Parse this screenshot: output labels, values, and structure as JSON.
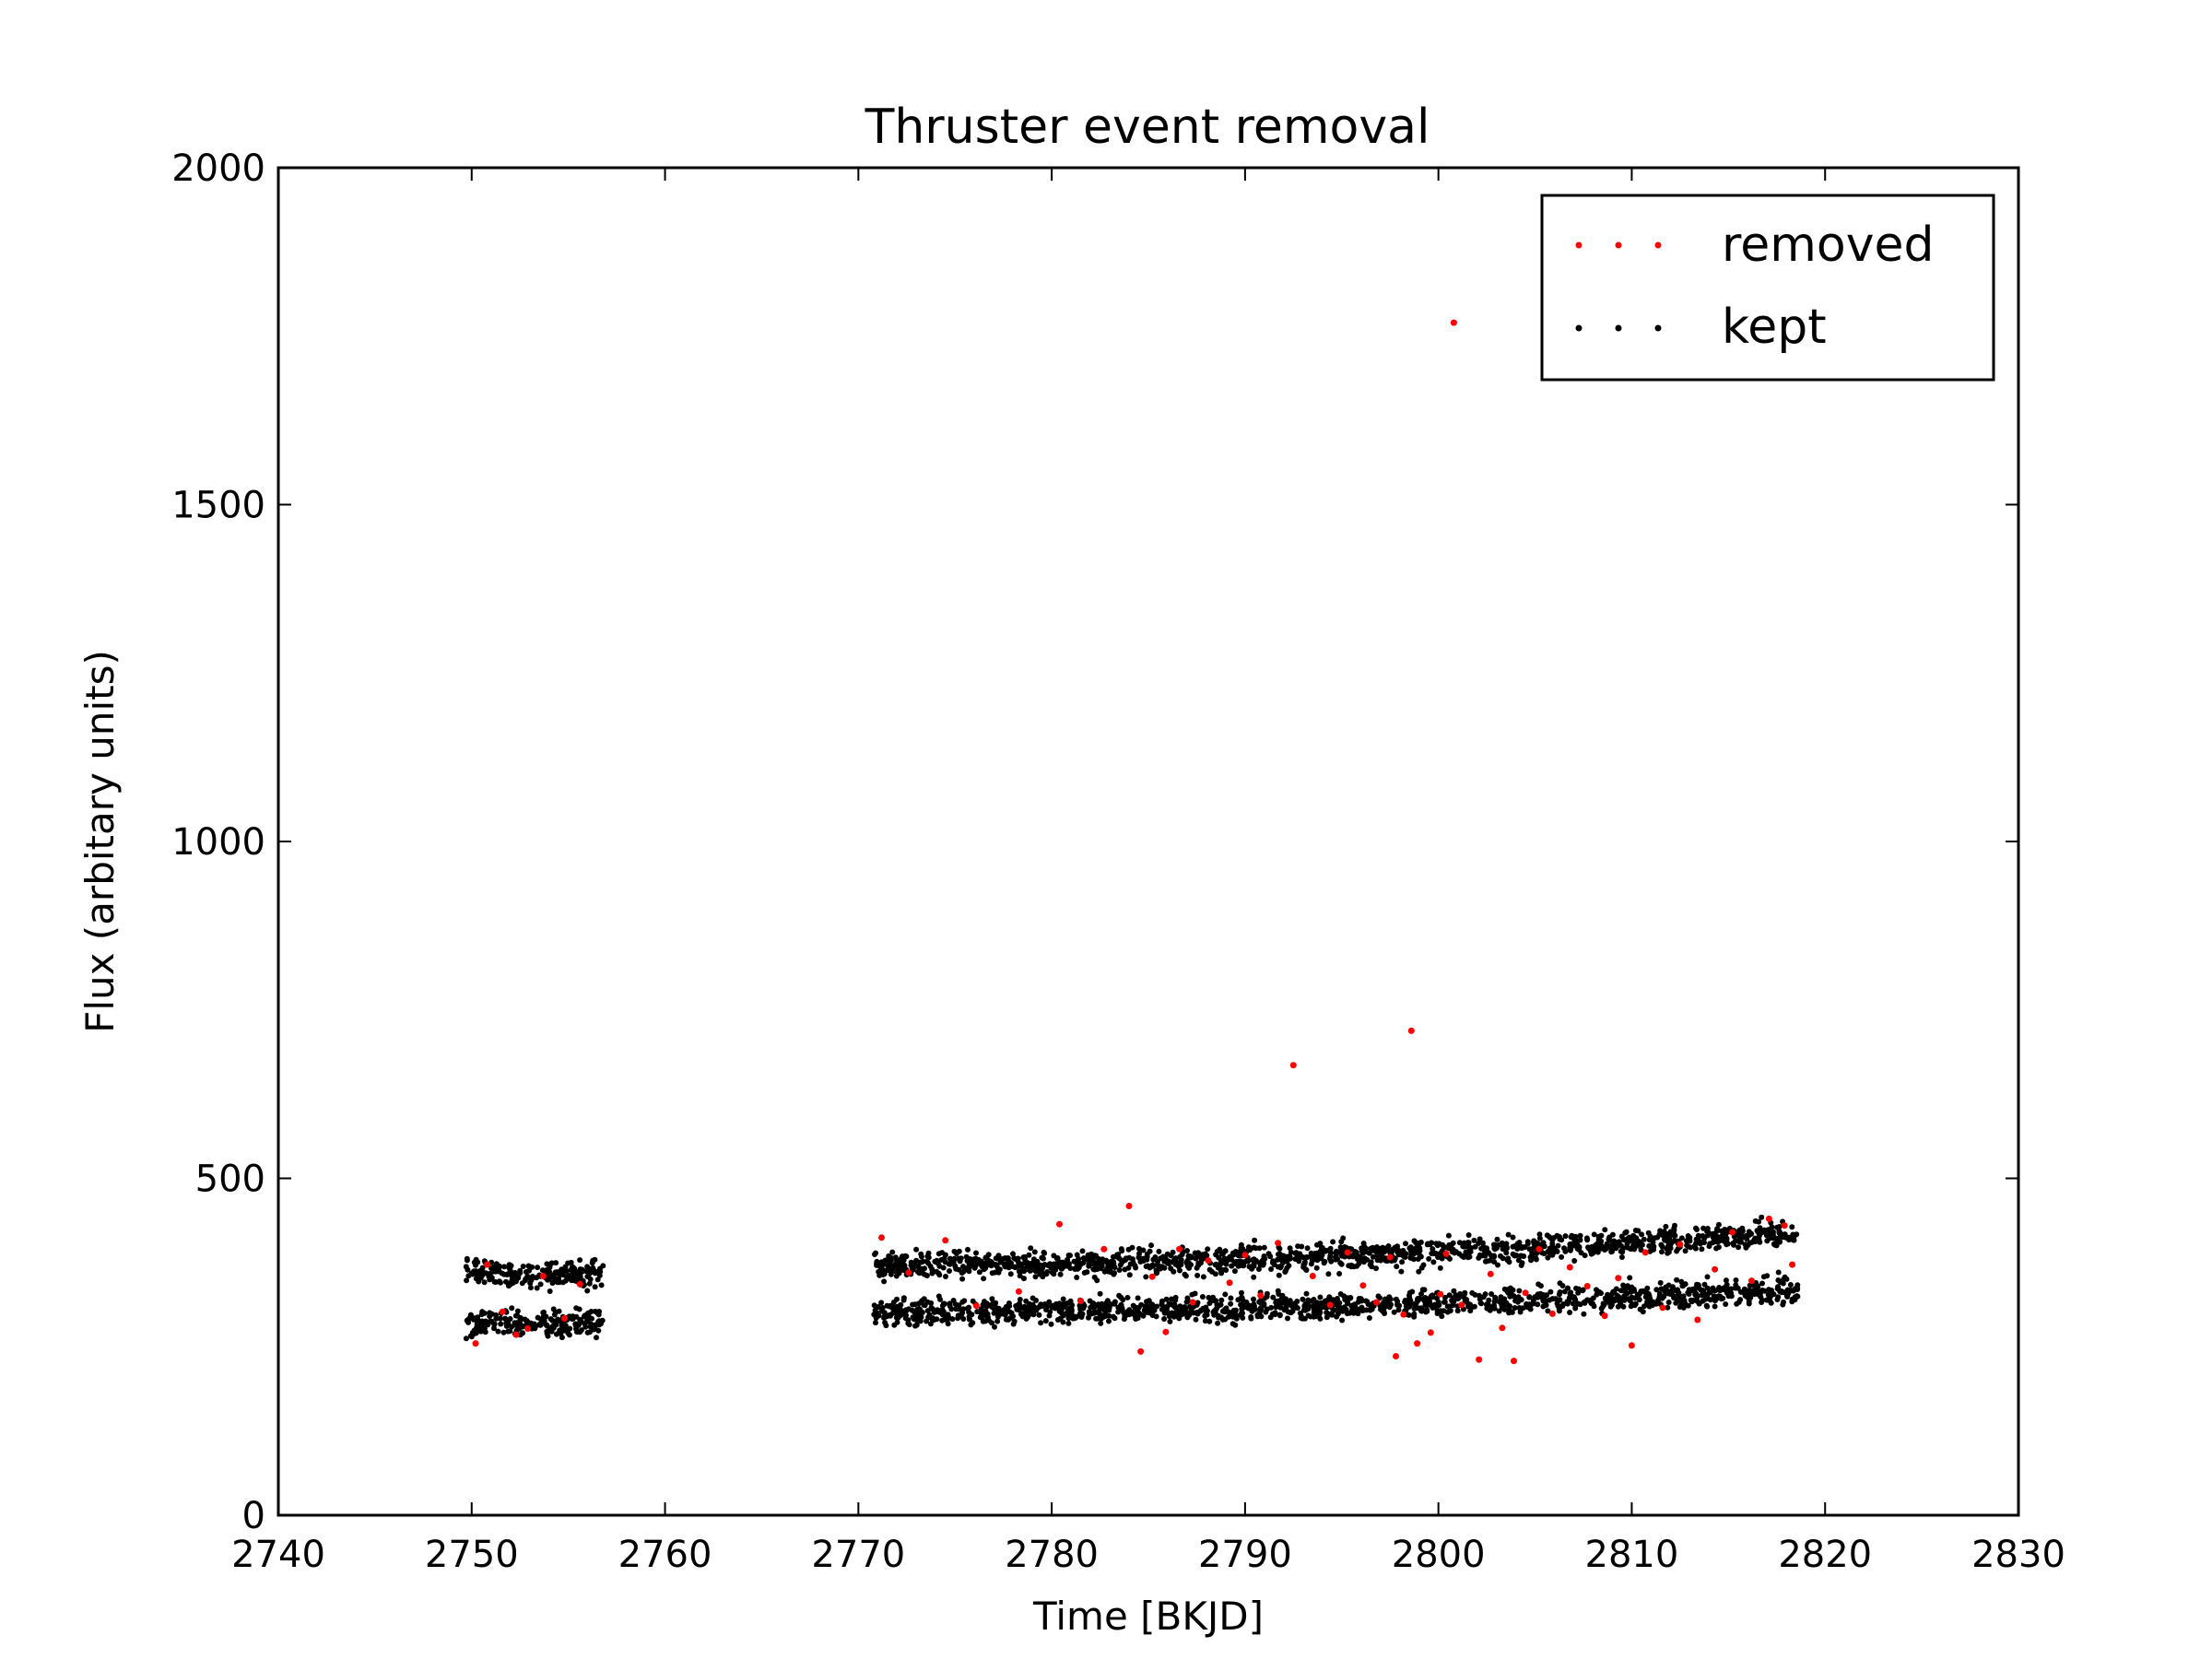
{
  "chart_data": {
    "type": "scatter",
    "title": "Thruster event removal",
    "xlabel": "Time [BKJD]",
    "ylabel": "Flux (arbitary units)",
    "xlim": [
      2740,
      2830
    ],
    "ylim": [
      0,
      2000
    ],
    "xticks": [
      2740,
      2750,
      2760,
      2770,
      2780,
      2790,
      2800,
      2810,
      2820,
      2830
    ],
    "yticks": [
      0,
      500,
      1000,
      1500,
      2000
    ],
    "grid": false,
    "legend_position": "top-right",
    "series": [
      {
        "name": "removed",
        "color": "#ff0000",
        "points": [
          [
            2750.2,
            255
          ],
          [
            2750.8,
            372
          ],
          [
            2751.6,
            302
          ],
          [
            2752.3,
            268
          ],
          [
            2752.9,
            277
          ],
          [
            2753.7,
            355
          ],
          [
            2754.8,
            292
          ],
          [
            2755.6,
            343
          ],
          [
            2771.2,
            412
          ],
          [
            2772.6,
            360
          ],
          [
            2774.5,
            408
          ],
          [
            2776.1,
            311
          ],
          [
            2778.3,
            332
          ],
          [
            2780.4,
            432
          ],
          [
            2781.5,
            318
          ],
          [
            2782.7,
            395
          ],
          [
            2784.0,
            459
          ],
          [
            2784.6,
            243
          ],
          [
            2785.2,
            354
          ],
          [
            2785.9,
            272
          ],
          [
            2786.6,
            395
          ],
          [
            2787.3,
            316
          ],
          [
            2788.1,
            378
          ],
          [
            2789.2,
            345
          ],
          [
            2790.0,
            386
          ],
          [
            2790.8,
            326
          ],
          [
            2791.7,
            404
          ],
          [
            2792.5,
            668
          ],
          [
            2793.5,
            355
          ],
          [
            2794.4,
            312
          ],
          [
            2795.3,
            390
          ],
          [
            2796.1,
            341
          ],
          [
            2796.8,
            316
          ],
          [
            2797.5,
            383
          ],
          [
            2797.8,
            236
          ],
          [
            2798.2,
            298
          ],
          [
            2798.6,
            719
          ],
          [
            2798.9,
            255
          ],
          [
            2799.6,
            271
          ],
          [
            2800.1,
            328
          ],
          [
            2800.4,
            388
          ],
          [
            2800.8,
            1770
          ],
          [
            2801.2,
            312
          ],
          [
            2802.1,
            231
          ],
          [
            2802.7,
            358
          ],
          [
            2803.3,
            278
          ],
          [
            2803.9,
            229
          ],
          [
            2804.5,
            330
          ],
          [
            2805.2,
            395
          ],
          [
            2805.9,
            299
          ],
          [
            2806.8,
            368
          ],
          [
            2807.7,
            340
          ],
          [
            2808.6,
            296
          ],
          [
            2809.3,
            352
          ],
          [
            2810.0,
            252
          ],
          [
            2810.7,
            390
          ],
          [
            2811.6,
            308
          ],
          [
            2812.5,
            402
          ],
          [
            2813.4,
            290
          ],
          [
            2814.3,
            365
          ],
          [
            2815.2,
            420
          ],
          [
            2816.2,
            348
          ],
          [
            2817.1,
            440
          ],
          [
            2817.9,
            430
          ],
          [
            2818.3,
            372
          ]
        ]
      },
      {
        "name": "kept",
        "color": "#000000",
        "segments": [
          {
            "x_start": 2749.7,
            "x_end": 2756.8,
            "upper": [
              358,
              358
            ],
            "lower": [
              285,
              285
            ],
            "spread": 20,
            "count": 420
          },
          {
            "x_start": 2770.8,
            "x_end": 2818.6,
            "upper": [
              372,
              420
            ],
            "lower": [
              302,
              335
            ],
            "spread": 20,
            "count": 2700
          }
        ]
      }
    ]
  }
}
